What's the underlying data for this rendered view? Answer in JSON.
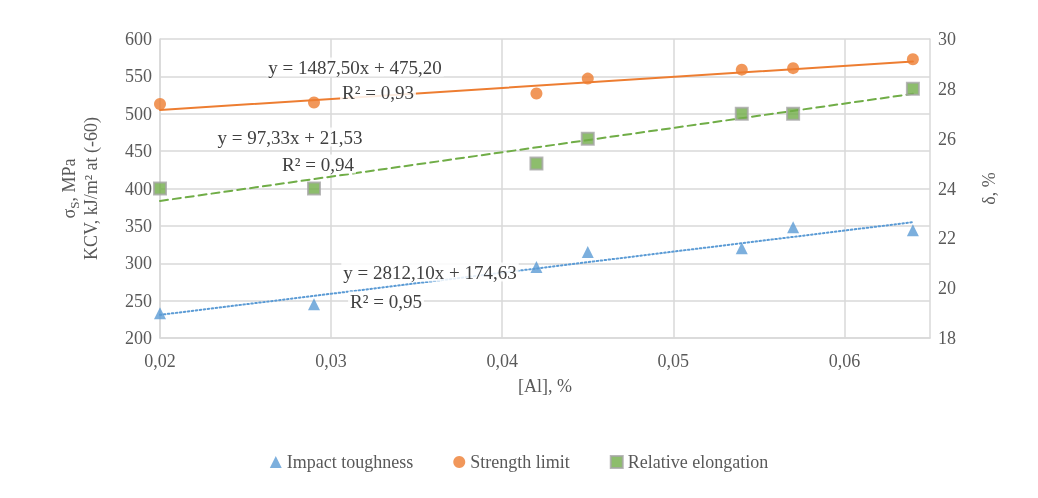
{
  "chart_data": {
    "type": "scatter",
    "xlabel": "[Al], %",
    "ylabel": "σ$_{S}$, MPa\nKCV, kJ/m² at (-60)",
    "y2label": "δ, %",
    "xlim": [
      0.02,
      0.065
    ],
    "xticks": [
      {
        "value": 0.02,
        "label": "0,02"
      },
      {
        "value": 0.03,
        "label": "0,03"
      },
      {
        "value": 0.04,
        "label": "0,04"
      },
      {
        "value": 0.05,
        "label": "0,05"
      },
      {
        "value": 0.06,
        "label": "0,06"
      }
    ],
    "ylim": [
      200,
      600
    ],
    "yticks": [
      200,
      250,
      300,
      350,
      400,
      450,
      500,
      550,
      600
    ],
    "y2lim": [
      18,
      30
    ],
    "y2ticks": [
      18,
      20,
      22,
      24,
      26,
      28,
      30
    ],
    "grid": true,
    "legend": "bottom",
    "series": [
      {
        "name": "Impact toughness",
        "marker": "triangle",
        "color": "#5b9bd5",
        "x": [
          0.02,
          0.029,
          0.042,
          0.045,
          0.054,
          0.057,
          0.064
        ],
        "values": [
          233,
          245,
          295,
          315,
          320,
          348,
          344
        ]
      },
      {
        "name": "Strength limit",
        "marker": "circle",
        "color": "#ed7d31",
        "x": [
          0.02,
          0.029,
          0.042,
          0.045,
          0.054,
          0.057,
          0.064
        ],
        "values": [
          513,
          515,
          527,
          547,
          559,
          561,
          573
        ]
      },
      {
        "name": "Relative elongation",
        "marker": "square",
        "color": "#70ad47",
        "axis": "y2",
        "x": [
          0.02,
          0.029,
          0.042,
          0.045,
          0.054,
          0.057,
          0.064
        ],
        "values": [
          24,
          24,
          25,
          26,
          27,
          27,
          28
        ]
      },
      {
        "type": "line",
        "line_style": "dotted",
        "color": "#5b9bd5",
        "x": [
          0.02,
          0.064
        ],
        "values": [
          231,
          355
        ]
      },
      {
        "type": "line",
        "line_style": "solid",
        "color": "#ed7d31",
        "x": [
          0.02,
          0.064
        ],
        "values": [
          505,
          570
        ]
      },
      {
        "type": "line",
        "line_style": "dashed",
        "color": "#70ad47",
        "axis": "y2",
        "x": [
          0.02,
          0.064
        ],
        "values": [
          23.5,
          27.8
        ]
      }
    ],
    "annotations": [
      "y = 1487,50x + 475,20",
      "R² = 0,93",
      "y = 97,33x + 21,53",
      "R² = 0,94",
      "y = 2812,10x + 174,63",
      "R² = 0,95"
    ]
  }
}
